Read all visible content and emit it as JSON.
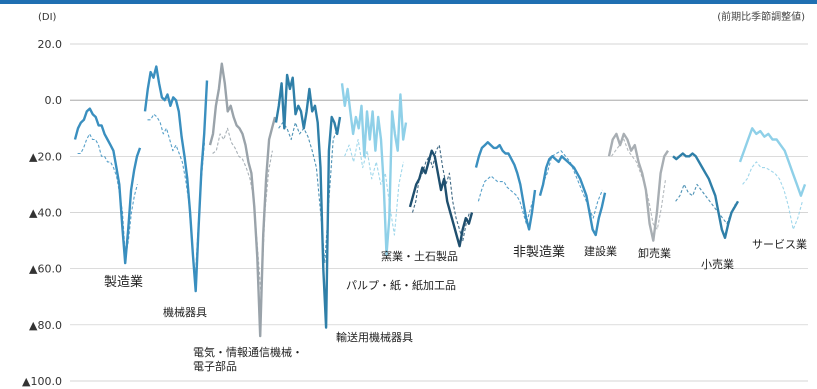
{
  "chart_data": {
    "type": "line",
    "y_unit": "(DI)",
    "note": "(前期比季節調整値)",
    "ylim": [
      -100,
      20
    ],
    "y_ticks": [
      {
        "value": 20,
        "label": "20.0"
      },
      {
        "value": 0,
        "label": "0.0"
      },
      {
        "value": -20,
        "label": "▲20.0"
      },
      {
        "value": -40,
        "label": "▲40.0"
      },
      {
        "value": -60,
        "label": "▲60.0"
      },
      {
        "value": -80,
        "label": "▲80.0"
      },
      {
        "value": -100,
        "label": "▲100.0"
      }
    ],
    "grid": true,
    "panels": [
      {
        "label": "製造業",
        "color": "#3a8fbf",
        "series": [
          {
            "style": "solid",
            "values": [
              -14,
              -10,
              -8,
              -7,
              -4,
              -3,
              -5,
              -6,
              -9,
              -9,
              -12,
              -14,
              -16,
              -18,
              -24,
              -30,
              -45,
              -58,
              -46,
              -32,
              -25,
              -20,
              -17
            ]
          },
          {
            "style": "dashed",
            "values": [
              -19,
              -19,
              -17,
              -14,
              -12,
              -14,
              -14,
              -16,
              -20,
              -20,
              -22,
              -22,
              -24,
              -27,
              -33,
              -40,
              -56,
              -50,
              -40,
              -34,
              -30
            ]
          }
        ]
      },
      {
        "label": "機械器具",
        "color": "#3a8fbf",
        "series": [
          {
            "style": "solid",
            "values": [
              -4,
              4,
              10,
              8,
              12,
              6,
              1,
              0,
              2,
              -2,
              1,
              0,
              -4,
              -13,
              -20,
              -28,
              -40,
              -55,
              -68,
              -46,
              -25,
              -12,
              7
            ]
          },
          {
            "style": "dashed",
            "values": [
              -7,
              -7,
              -5,
              -6,
              -8,
              -12,
              -10,
              -14,
              -18,
              -16,
              -19,
              -22,
              -28,
              -36,
              -50,
              -65,
              -45,
              -28,
              -15
            ]
          }
        ]
      },
      {
        "label": "電気・情報通信機械・\n電子部品",
        "color": "#9aa3aa",
        "series": [
          {
            "style": "solid",
            "values": [
              -16,
              -12,
              -2,
              4,
              13,
              6,
              -4,
              -2,
              -6,
              -9,
              -10,
              -12,
              -16,
              -22,
              -26,
              -38,
              -56,
              -84,
              -48,
              -28,
              -14,
              -10,
              -6
            ]
          },
          {
            "style": "dashed",
            "values": [
              -19,
              -18,
              -12,
              -14,
              -10,
              -15,
              -17,
              -20,
              -21,
              -24,
              -28,
              -35,
              -52,
              -70,
              -40,
              -25,
              -18
            ]
          }
        ]
      },
      {
        "label": "輸送用機械器具",
        "color": "#2f7fa8",
        "series": [
          {
            "style": "solid",
            "values": [
              -8,
              -2,
              6,
              -10,
              9,
              4,
              8,
              -5,
              -2,
              -4,
              -10,
              -4,
              4,
              -4,
              -2,
              -8,
              -24,
              -60,
              -81,
              -18,
              -6,
              -8,
              -12,
              -6
            ]
          },
          {
            "style": "dashed",
            "values": [
              -10,
              -8,
              -10,
              -14,
              -8,
              -12,
              -10,
              -13,
              -18,
              -24,
              -40,
              -58,
              -35,
              -14,
              -10
            ]
          }
        ]
      },
      {
        "label": "パルプ・紙・紙加工品",
        "color": "#8fd0e8",
        "series": [
          {
            "style": "solid",
            "values": [
              6,
              -2,
              4,
              -4,
              -12,
              -6,
              -10,
              -2,
              -20,
              -4,
              -14,
              -4,
              -18,
              -6,
              -14,
              -30,
              -55,
              -42,
              -4,
              -12,
              -18,
              2,
              -14,
              -8
            ]
          },
          {
            "style": "dashed",
            "values": [
              -20,
              -16,
              -22,
              -14,
              -24,
              -18,
              -28,
              -22,
              -30,
              -26,
              -38,
              -48,
              -30,
              -22
            ]
          }
        ]
      },
      {
        "label": "窯業・土石製品",
        "color": "#1f4f6e",
        "series": [
          {
            "style": "solid",
            "values": [
              -38,
              -34,
              -30,
              -28,
              -24,
              -26,
              -22,
              -18,
              -20,
              -26,
              -32,
              -28,
              -36,
              -40,
              -44,
              -48,
              -52,
              -46,
              -42,
              -44,
              -40
            ]
          },
          {
            "style": "dashed",
            "values": [
              -40,
              -36,
              -28,
              -26,
              -22,
              -20,
              -24,
              -18,
              -16,
              -24,
              -30,
              -26,
              -36,
              -42,
              -46,
              -50,
              -44,
              -40
            ]
          }
        ]
      },
      {
        "label": "非製造業",
        "color": "#3a8fbf",
        "series": [
          {
            "style": "solid",
            "values": [
              -24,
              -20,
              -17,
              -16,
              -15,
              -16,
              -17,
              -17,
              -16,
              -18,
              -19,
              -19,
              -21,
              -23,
              -26,
              -30,
              -36,
              -42,
              -46,
              -40,
              -32
            ]
          },
          {
            "style": "dashed",
            "values": [
              -36,
              -32,
              -29,
              -28,
              -27,
              -28,
              -29,
              -29,
              -29,
              -31,
              -32,
              -33,
              -34,
              -36,
              -40,
              -44,
              -40,
              -36
            ]
          }
        ]
      },
      {
        "label": "建設業",
        "color": "#3a8fbf",
        "series": [
          {
            "style": "solid",
            "values": [
              -34,
              -30,
              -24,
              -21,
              -20,
              -21,
              -22,
              -20,
              -21,
              -22,
              -23,
              -24,
              -26,
              -28,
              -31,
              -34,
              -40,
              -46,
              -48,
              -42,
              -38,
              -33
            ]
          },
          {
            "style": "dashed",
            "values": [
              -30,
              -26,
              -20,
              -19,
              -18,
              -20,
              -22,
              -26,
              -30,
              -34,
              -38,
              -42,
              -36,
              -32
            ]
          }
        ]
      },
      {
        "label": "卸売業",
        "color": "#a8aeb3",
        "series": [
          {
            "style": "solid",
            "values": [
              -20,
              -14,
              -12,
              -16,
              -12,
              -14,
              -18,
              -16,
              -22,
              -26,
              -32,
              -44,
              -50,
              -40,
              -26,
              -20,
              -18
            ]
          },
          {
            "style": "dashed",
            "values": [
              -20,
              -18,
              -16,
              -14,
              -18,
              -20,
              -22,
              -26,
              -30,
              -36,
              -44,
              -46,
              -38,
              -28
            ]
          }
        ]
      },
      {
        "label": "小売業",
        "color": "#2f7fa8",
        "series": [
          {
            "style": "solid",
            "values": [
              -20,
              -21,
              -20,
              -19,
              -20,
              -20,
              -19,
              -20,
              -22,
              -24,
              -26,
              -28,
              -31,
              -34,
              -40,
              -46,
              -49,
              -44,
              -40,
              -38,
              -36
            ]
          },
          {
            "style": "dashed",
            "values": [
              -36,
              -34,
              -30,
              -33,
              -34,
              -30,
              -32,
              -34,
              -36,
              -38,
              -40,
              -42,
              -44,
              -40,
              -37
            ]
          }
        ]
      },
      {
        "label": "サービス業",
        "color": "#8fd0e8",
        "series": [
          {
            "style": "solid",
            "values": [
              -22,
              -18,
              -14,
              -10,
              -12,
              -11,
              -13,
              -12,
              -14,
              -14,
              -16,
              -18,
              -22,
              -26,
              -30,
              -34,
              -30
            ]
          },
          {
            "style": "dashed",
            "values": [
              -30,
              -28,
              -24,
              -22,
              -24,
              -24,
              -25,
              -26,
              -28,
              -32,
              -38,
              -46,
              -42,
              -36
            ]
          }
        ]
      }
    ]
  }
}
